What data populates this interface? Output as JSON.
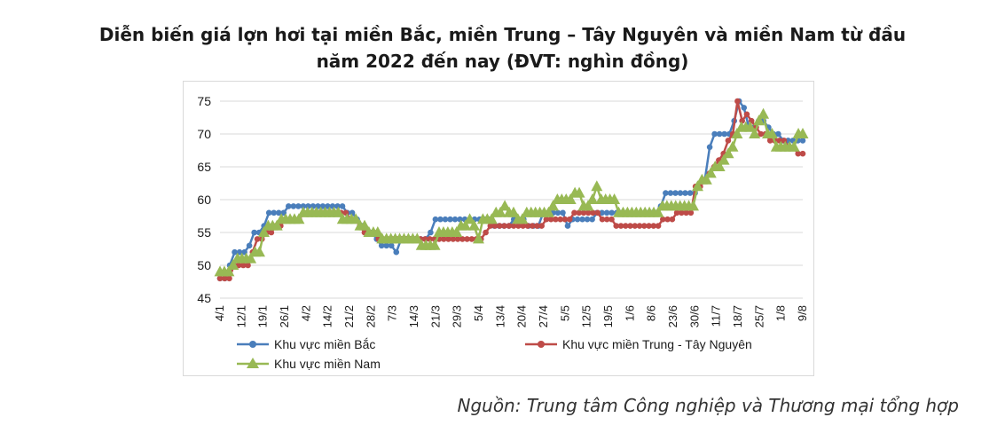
{
  "title": {
    "line1": "Diễn biến giá lợn hơi tại miền Bắc, miền Trung – Tây Nguyên và miền Nam từ đầu",
    "line2": "năm 2022 đến nay (ĐVT: nghìn đồng)"
  },
  "source": "Nguồn: Trung tâm Công nghiệp và Thương mại tổng hợp",
  "colors": {
    "north": "#4a7ebb",
    "central": "#be4b48",
    "south": "#98b954",
    "grid": "#d9d9d9",
    "axis_text": "#1a1a1a"
  },
  "chart_data": {
    "type": "line",
    "xlabel": "",
    "ylabel": "",
    "ylim": [
      45,
      75
    ],
    "yticks": [
      45,
      50,
      55,
      60,
      65,
      70,
      75
    ],
    "grid": true,
    "legend_position": "bottom",
    "tick_labels": [
      "4/1",
      "12/1",
      "19/1",
      "26/1",
      "4/2",
      "14/2",
      "21/2",
      "28/2",
      "7/3",
      "14/3",
      "21/3",
      "29/3",
      "5/4",
      "13/4",
      "20/4",
      "27/4",
      "5/5",
      "12/5",
      "19/5",
      "1/6",
      "8/6",
      "23/6",
      "30/6",
      "11/7",
      "18/7",
      "25/7",
      "1/8",
      "9/8"
    ],
    "series": [
      {
        "name": "Khu vực miền Bắc",
        "marker": "circle",
        "values": [
          48,
          48,
          50,
          52,
          52,
          52,
          53,
          55,
          55,
          56,
          58,
          58,
          58,
          58,
          59,
          59,
          59,
          59,
          59,
          59,
          59,
          59,
          59,
          59,
          59,
          59,
          58,
          58,
          57,
          56,
          55,
          55,
          54,
          53,
          53,
          53,
          52,
          54,
          54,
          54,
          54,
          54,
          54,
          55,
          57,
          57,
          57,
          57,
          57,
          57,
          57,
          57,
          57,
          57,
          57,
          57,
          56,
          56,
          56,
          56,
          57,
          57,
          57,
          56,
          56,
          56,
          58,
          58,
          58,
          58,
          58,
          56,
          57,
          57,
          57,
          57,
          57,
          58,
          58,
          58,
          58,
          58,
          58,
          58,
          58,
          58,
          58,
          58,
          58,
          58,
          59,
          61,
          61,
          61,
          61,
          61,
          61,
          61,
          62,
          63,
          68,
          70,
          70,
          70,
          70,
          72,
          75,
          74,
          71,
          71,
          72,
          72,
          71,
          70,
          70,
          69,
          69,
          69,
          69,
          69
        ]
      },
      {
        "name": "Khu vực miền Trung - Tây Nguyên",
        "marker": "circle",
        "values": [
          48,
          48,
          48,
          50,
          50,
          50,
          50,
          52,
          54,
          54,
          55,
          55,
          56,
          56,
          57,
          57,
          57,
          57,
          58,
          58,
          58,
          58,
          58,
          58,
          58,
          58,
          58,
          58,
          57,
          57,
          56,
          55,
          55,
          55,
          54,
          54,
          54,
          54,
          54,
          54,
          54,
          54,
          54,
          54,
          54,
          54,
          54,
          54,
          54,
          54,
          54,
          54,
          54,
          54,
          54,
          54,
          54,
          55,
          56,
          56,
          56,
          56,
          56,
          56,
          56,
          56,
          56,
          56,
          56,
          56,
          57,
          57,
          57,
          57,
          57,
          57,
          58,
          58,
          58,
          58,
          58,
          58,
          57,
          57,
          57,
          56,
          56,
          56,
          56,
          56,
          56,
          56,
          56,
          56,
          56,
          57,
          57,
          57,
          58,
          58,
          58,
          58,
          62,
          62,
          63,
          64,
          65,
          66,
          67,
          69,
          70,
          75,
          72,
          73,
          72,
          71,
          70,
          70,
          69,
          69,
          69,
          69,
          68,
          68,
          67,
          67
        ]
      },
      {
        "name": "Khu vực miền Nam",
        "marker": "triangle",
        "values": [
          49,
          49,
          49,
          50,
          51,
          51,
          51,
          51,
          52,
          52,
          55,
          56,
          56,
          56,
          57,
          57,
          57,
          57,
          57,
          58,
          58,
          58,
          58,
          58,
          58,
          58,
          58,
          58,
          57,
          57,
          57,
          57,
          56,
          56,
          55,
          55,
          55,
          54,
          54,
          54,
          54,
          54,
          54,
          54,
          54,
          54,
          53,
          53,
          53,
          53,
          55,
          55,
          55,
          55,
          55,
          56,
          56,
          57,
          56,
          54,
          57,
          57,
          57,
          58,
          58,
          59,
          58,
          58,
          57,
          57,
          58,
          58,
          58,
          58,
          58,
          58,
          59,
          60,
          60,
          60,
          60,
          61,
          61,
          59,
          59,
          60,
          62,
          60,
          60,
          60,
          60,
          58,
          58,
          58,
          58,
          58,
          58,
          58,
          58,
          58,
          58,
          59,
          59,
          59,
          59,
          59,
          59,
          59,
          59,
          62,
          63,
          63,
          64,
          65,
          65,
          66,
          67,
          68,
          70,
          71,
          71,
          71,
          70,
          72,
          73,
          70,
          70,
          68,
          68,
          68,
          68,
          68,
          70,
          70
        ]
      }
    ]
  }
}
